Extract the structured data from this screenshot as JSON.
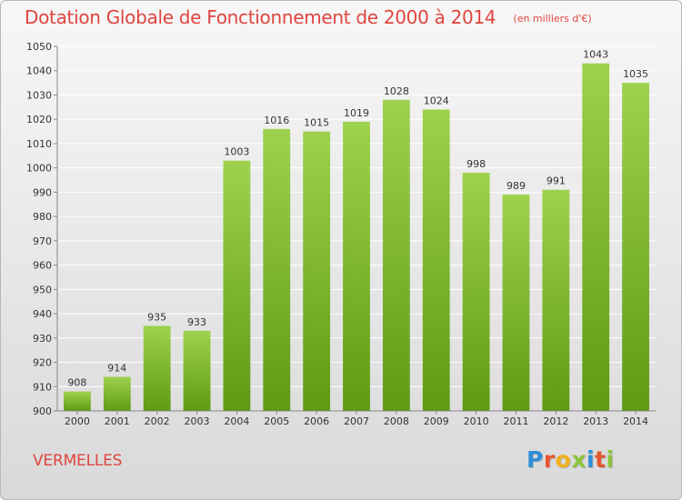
{
  "header": {
    "title": "Dotation Globale de Fonctionnement de 2000 à 2014",
    "subtitle": "(en milliers d'€)"
  },
  "commune": "VERMELLES",
  "logo": {
    "text": "Proxiti",
    "letters": [
      {
        "ch": "P",
        "color": "#2f8fd8"
      },
      {
        "ch": "r",
        "color": "#e8562e"
      },
      {
        "ch": "o",
        "color": "#f2b01e"
      },
      {
        "ch": "x",
        "color": "#8cc43c"
      },
      {
        "ch": "i",
        "color": "#2f8fd8"
      },
      {
        "ch": "t",
        "color": "#e8562e"
      },
      {
        "ch": "i",
        "color": "#8cc43c"
      }
    ]
  },
  "chart_data": {
    "type": "bar",
    "categories": [
      "2000",
      "2001",
      "2002",
      "2003",
      "2004",
      "2005",
      "2006",
      "2007",
      "2008",
      "2009",
      "2010",
      "2011",
      "2012",
      "2013",
      "2014"
    ],
    "values": [
      908,
      914,
      935,
      933,
      1003,
      1016,
      1015,
      1019,
      1028,
      1024,
      998,
      989,
      991,
      1043,
      1035
    ],
    "ylim": [
      900,
      1050
    ],
    "yticks": [
      900,
      910,
      920,
      930,
      940,
      950,
      960,
      970,
      980,
      990,
      1000,
      1010,
      1020,
      1030,
      1040,
      1050
    ],
    "grid": true,
    "colors": {
      "bar_top": "#9ed24e",
      "bar_bottom": "#5e9a14",
      "grid": "#ffffff",
      "text": "#333333"
    }
  }
}
